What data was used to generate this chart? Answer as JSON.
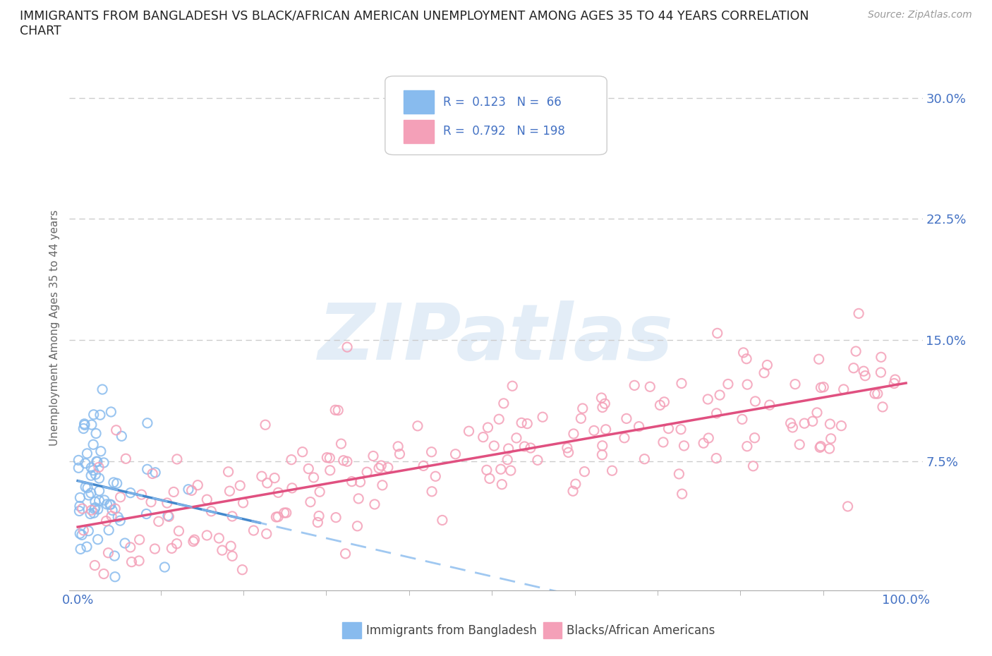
{
  "title_line1": "IMMIGRANTS FROM BANGLADESH VS BLACK/AFRICAN AMERICAN UNEMPLOYMENT AMONG AGES 35 TO 44 YEARS CORRELATION",
  "title_line2": "CHART",
  "source": "Source: ZipAtlas.com",
  "ylabel": "Unemployment Among Ages 35 to 44 years",
  "background_color": "#ffffff",
  "grid_color": "#cccccc",
  "blue_color": "#88bbee",
  "blue_dark": "#4488cc",
  "pink_color": "#f4a0b8",
  "pink_dark": "#e05080",
  "tick_color": "#4472c4",
  "axis_label_color": "#666666",
  "watermark_color": "#c8ddf0",
  "legend_r1": "R =  0.123   N =  66",
  "legend_r2": "R =  0.792   N = 198",
  "legend_label1": "Immigrants from Bangladesh",
  "legend_label2": "Blacks/African Americans",
  "R_blue": 0.123,
  "N_blue": 66,
  "R_pink": 0.792,
  "N_pink": 198
}
